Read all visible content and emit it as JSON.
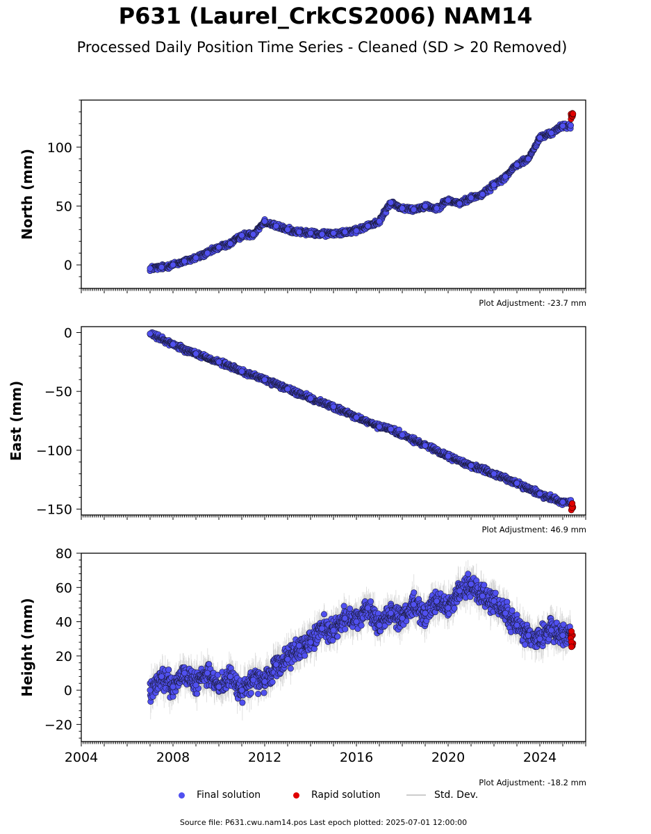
{
  "title": "P631 (Laurel_CrkCS2006) NAM14",
  "subtitle": "Processed Daily Position Time Series - Cleaned (SD > 20 Removed)",
  "legend": {
    "final": "Final solution",
    "rapid": "Rapid solution",
    "std": "Std. Dev."
  },
  "footer": "Source file: P631.cwu.nam14.pos  Last epoch plotted: 2025-07-01 12:00:00",
  "colors": {
    "final": "#5050f0",
    "rapid": "#e00000",
    "std": "#bbbbbb"
  },
  "chart_data": [
    {
      "type": "scatter",
      "ylabel": "North (mm)",
      "adjustment": "Plot Adjustment: -23.7 mm",
      "xlim": [
        2004,
        2026
      ],
      "ylim": [
        -20,
        140
      ],
      "yticks": [
        0,
        50,
        100
      ],
      "series": [
        {
          "name": "Final solution",
          "x": [
            2007.0,
            2007.5,
            2008.0,
            2008.5,
            2009.0,
            2009.5,
            2010.0,
            2010.5,
            2011.0,
            2011.5,
            2012.0,
            2012.5,
            2013.0,
            2013.5,
            2014.0,
            2014.5,
            2015.0,
            2015.5,
            2016.0,
            2016.5,
            2017.0,
            2017.5,
            2018.0,
            2018.5,
            2019.0,
            2019.5,
            2020.0,
            2020.5,
            2021.0,
            2021.5,
            2022.0,
            2022.5,
            2023.0,
            2023.5,
            2024.0,
            2024.5,
            2025.0
          ],
          "y": [
            -3,
            -2,
            0,
            3,
            6,
            10,
            15,
            18,
            25,
            26,
            37,
            33,
            30,
            28,
            27,
            26,
            27,
            28,
            29,
            33,
            37,
            53,
            48,
            47,
            50,
            48,
            55,
            52,
            57,
            60,
            68,
            75,
            85,
            90,
            108,
            112,
            118
          ]
        },
        {
          "name": "Rapid solution",
          "x": [
            2025.4
          ],
          "y": [
            126
          ]
        }
      ]
    },
    {
      "type": "scatter",
      "ylabel": "East (mm)",
      "adjustment": "Plot Adjustment: 46.9 mm",
      "xlim": [
        2004,
        2026
      ],
      "ylim": [
        -155,
        5
      ],
      "yticks": [
        0,
        -50,
        -100,
        -150
      ],
      "series": [
        {
          "name": "Final solution",
          "x": [
            2007.0,
            2008.0,
            2009.0,
            2010.0,
            2011.0,
            2012.0,
            2013.0,
            2014.0,
            2015.0,
            2016.0,
            2017.0,
            2017.5,
            2018.0,
            2019.0,
            2020.0,
            2021.0,
            2022.0,
            2023.0,
            2024.0,
            2025.0
          ],
          "y": [
            -1,
            -10,
            -18,
            -25,
            -33,
            -40,
            -48,
            -56,
            -63,
            -72,
            -80,
            -82,
            -87,
            -96,
            -105,
            -113,
            -120,
            -128,
            -137,
            -144
          ]
        },
        {
          "name": "Rapid solution",
          "x": [
            2025.4
          ],
          "y": [
            -148
          ]
        }
      ]
    },
    {
      "type": "scatter",
      "ylabel": "Height (mm)",
      "adjustment": "Plot Adjustment: -18.2 mm",
      "xlim": [
        2004,
        2026
      ],
      "ylim": [
        -30,
        80
      ],
      "yticks": [
        -20,
        0,
        20,
        40,
        60,
        80
      ],
      "xticks": [
        2004,
        2008,
        2012,
        2016,
        2020,
        2024
      ],
      "series": [
        {
          "name": "Final solution",
          "x": [
            2007.0,
            2007.5,
            2008.0,
            2008.5,
            2009.0,
            2009.5,
            2010.0,
            2010.5,
            2011.0,
            2011.5,
            2012.0,
            2012.5,
            2013.0,
            2013.5,
            2014.0,
            2014.5,
            2015.0,
            2015.5,
            2016.0,
            2016.5,
            2017.0,
            2017.5,
            2018.0,
            2018.5,
            2019.0,
            2019.5,
            2020.0,
            2020.5,
            2021.0,
            2021.5,
            2022.0,
            2022.5,
            2023.0,
            2023.5,
            2024.0,
            2024.5,
            2025.0
          ],
          "y": [
            0,
            8,
            2,
            10,
            3,
            10,
            2,
            8,
            0,
            6,
            5,
            15,
            18,
            26,
            28,
            36,
            35,
            42,
            40,
            48,
            38,
            45,
            42,
            50,
            45,
            52,
            48,
            58,
            62,
            55,
            52,
            45,
            38,
            32,
            30,
            35,
            32
          ]
        },
        {
          "name": "Rapid solution",
          "x": [
            2025.4
          ],
          "y": [
            30
          ]
        }
      ]
    }
  ]
}
